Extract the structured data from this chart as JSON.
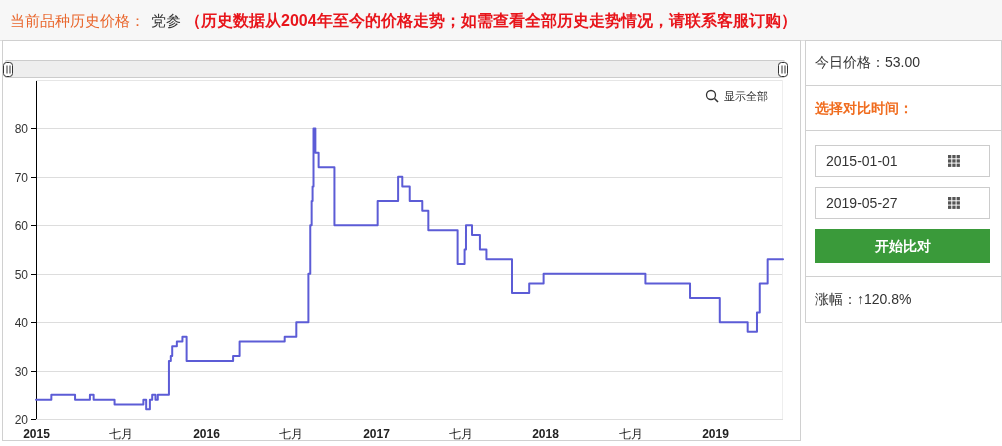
{
  "chart_data": [
    {
      "type": "step",
      "title": "当前品种历史价格：",
      "subtitle": "党参",
      "annotations": [
        "（历史数据从2004年至今的价格走势；如需查看全部历史走势情况，请联系客服订购）",
        "显示全部"
      ],
      "x": [
        "2015-01-01",
        "2015-02-03",
        "2015-03-26",
        "2015-04-27",
        "2015-05-05",
        "2015-06-19",
        "2015-08-20",
        "2015-08-26",
        "2015-09-03",
        "2015-09-08",
        "2015-09-15",
        "2015-09-20",
        "2015-10-14",
        "2015-10-18",
        "2015-10-21",
        "2015-10-31",
        "2015-11-12",
        "2015-11-21",
        "2016-02-29",
        "2016-03-14",
        "2016-06-19",
        "2016-07-14",
        "2016-08-09",
        "2016-08-13",
        "2016-08-16",
        "2016-08-18",
        "2016-08-20",
        "2016-08-24",
        "2016-08-31",
        "2016-10-04",
        "2017-01-05",
        "2017-02-18",
        "2017-02-27",
        "2017-03-15",
        "2017-04-11",
        "2017-04-24",
        "2017-06-26",
        "2017-07-11",
        "2017-07-14",
        "2017-07-27",
        "2017-08-13",
        "2017-08-27",
        "2017-10-21",
        "2017-11-27",
        "2017-12-28",
        "2018-08-04",
        "2018-11-08",
        "2019-01-11",
        "2019-03-12",
        "2019-04-01",
        "2019-04-07",
        "2019-04-24",
        "2019-05-27"
      ],
      "series": [
        {
          "color": "#5c5cd6",
          "values": [
            24,
            25,
            24,
            25,
            24,
            23,
            24,
            22,
            24,
            25,
            24,
            25,
            32,
            33,
            35,
            36,
            37,
            32,
            33,
            36,
            37,
            40,
            50,
            60,
            65,
            68,
            80,
            75,
            72,
            60,
            65,
            70,
            68,
            65,
            63,
            59,
            52,
            55,
            60,
            58,
            55,
            53,
            46,
            48,
            50,
            48,
            45,
            40,
            38,
            42,
            48,
            53,
            53
          ]
        }
      ],
      "xlim": [
        "2015-01-01",
        "2019-05-27"
      ],
      "xticks": [
        {
          "value": "2015-01-01",
          "label": "2015"
        },
        {
          "value": "2015-07-01",
          "label": "七月"
        },
        {
          "value": "2016-01-01",
          "label": "2016"
        },
        {
          "value": "2016-07-01",
          "label": "七月"
        },
        {
          "value": "2017-01-01",
          "label": "2017"
        },
        {
          "value": "2017-07-01",
          "label": "七月"
        },
        {
          "value": "2018-01-01",
          "label": "2018"
        },
        {
          "value": "2018-07-01",
          "label": "七月"
        },
        {
          "value": "2019-01-01",
          "label": "2019"
        }
      ],
      "ylim": [
        20,
        90
      ],
      "yticks": [
        20,
        30,
        40,
        50,
        60,
        70,
        80
      ],
      "grid": "y",
      "line_style": "solid"
    },
    {
      "type": "other",
      "annotations": [
        "今日价格：53.00",
        "选择对比时间：",
        "2015-01-01",
        "2019-05-27",
        "开始比对",
        "涨幅：↑120.8%"
      ]
    }
  ]
}
